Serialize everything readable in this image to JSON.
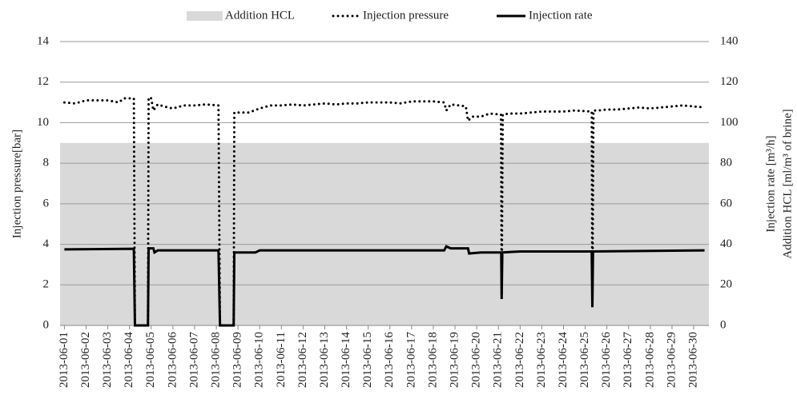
{
  "chart_data": {
    "type": "line",
    "y_label": "Injection pressure[bar]",
    "y2_labels": [
      "Injection rate [m³/h]",
      "Addition HCL [ml/m³ of brine]"
    ],
    "xlim": [
      0.8,
      30.7
    ],
    "xticks": [
      {
        "value": 1,
        "label": "2013-06-01"
      },
      {
        "value": 2,
        "label": "2013-06-02"
      },
      {
        "value": 3,
        "label": "2013-06-03"
      },
      {
        "value": 4,
        "label": "2013-06-04"
      },
      {
        "value": 5,
        "label": "2013-06-05"
      },
      {
        "value": 6,
        "label": "2013-06-06"
      },
      {
        "value": 7,
        "label": "2013-06-07"
      },
      {
        "value": 8,
        "label": "2013-06-08"
      },
      {
        "value": 9,
        "label": "2013-06-09"
      },
      {
        "value": 10,
        "label": "2013-06-10"
      },
      {
        "value": 11,
        "label": "2013-06-11"
      },
      {
        "value": 12,
        "label": "2013-06-12"
      },
      {
        "value": 13,
        "label": "2013-06-13"
      },
      {
        "value": 14,
        "label": "2013-06-14"
      },
      {
        "value": 15,
        "label": "2013-06-15"
      },
      {
        "value": 16,
        "label": "2013-06-16"
      },
      {
        "value": 17,
        "label": "2013-06-17"
      },
      {
        "value": 18,
        "label": "2013-06-18"
      },
      {
        "value": 19,
        "label": "2013-06-19"
      },
      {
        "value": 20,
        "label": "2013-06-20"
      },
      {
        "value": 21,
        "label": "2013-06-21"
      },
      {
        "value": 22,
        "label": "2013-06-22"
      },
      {
        "value": 23,
        "label": "2013-06-23"
      },
      {
        "value": 24,
        "label": "2013-06-24"
      },
      {
        "value": 25,
        "label": "2013-06-25"
      },
      {
        "value": 26,
        "label": "2013-06-26"
      },
      {
        "value": 27,
        "label": "2013-06-27"
      },
      {
        "value": 28,
        "label": "2013-06-28"
      },
      {
        "value": 29,
        "label": "2013-06-29"
      },
      {
        "value": 30,
        "label": "2013-06-30"
      }
    ],
    "ylim": [
      0,
      14
    ],
    "yticks": [
      0,
      2,
      4,
      6,
      8,
      10,
      12,
      14
    ],
    "y2lim": [
      0,
      140
    ],
    "y2ticks": [
      0,
      20,
      40,
      60,
      80,
      100,
      120,
      140
    ],
    "grid": true,
    "legend": "top",
    "series": [
      {
        "name": "Addition HCL",
        "color": "#d9d9d9",
        "style": "area",
        "axis": "y2",
        "x": [
          0.8,
          30.7
        ],
        "values": [
          90,
          90
        ]
      },
      {
        "name": "Injection pressure",
        "color": "#000000",
        "style": "dotted",
        "x": [
          1,
          1.5,
          2,
          2.5,
          3,
          3.5,
          3.75,
          4.2,
          4.25,
          4.85,
          4.88,
          5.0,
          5.1,
          5.3,
          5.6,
          6,
          6.5,
          7,
          7.5,
          8.1,
          8.17,
          8.8,
          8.83,
          9,
          9.5,
          10,
          10.5,
          11,
          11.5,
          12,
          12.5,
          13,
          13.5,
          14,
          14.5,
          15,
          15.5,
          16,
          16.5,
          17,
          17.5,
          18,
          18.5,
          18.6,
          18.8,
          19.2,
          19.5,
          19.6,
          19.8,
          20.2,
          20.6,
          21.12,
          21.15,
          21.2,
          21.5,
          22,
          22.5,
          23,
          23.5,
          24,
          24.5,
          25.3,
          25.33,
          25.38,
          25.6,
          26,
          26.5,
          27,
          27.5,
          28,
          28.5,
          29,
          29.5,
          30,
          30.5
        ],
        "values": [
          11.0,
          10.95,
          11.1,
          11.1,
          11.1,
          11.0,
          11.2,
          11.2,
          0,
          0,
          11.25,
          11.2,
          10.6,
          10.9,
          10.8,
          10.7,
          10.85,
          10.85,
          10.9,
          10.85,
          0,
          0,
          10.5,
          10.5,
          10.5,
          10.7,
          10.85,
          10.85,
          10.9,
          10.85,
          10.9,
          10.95,
          10.9,
          10.95,
          10.95,
          11.0,
          11.0,
          11.0,
          10.95,
          11.05,
          11.05,
          11.05,
          11.0,
          10.6,
          10.9,
          10.85,
          10.8,
          10.1,
          10.3,
          10.3,
          10.45,
          10.4,
          1.5,
          10.4,
          10.45,
          10.45,
          10.5,
          10.55,
          10.55,
          10.55,
          10.6,
          10.55,
          1.0,
          10.6,
          10.6,
          10.65,
          10.65,
          10.7,
          10.75,
          10.7,
          10.75,
          10.8,
          10.85,
          10.8,
          10.75
        ]
      },
      {
        "name": "Injection rate",
        "color": "#000000",
        "style": "solid",
        "axis": "y2",
        "x": [
          1,
          4.2,
          4.25,
          4.85,
          4.88,
          5.1,
          5.15,
          5.3,
          8.1,
          8.17,
          8.8,
          8.83,
          9.8,
          10,
          18.5,
          18.6,
          18.8,
          19.6,
          19.65,
          20.2,
          21.13,
          21.15,
          21.18,
          22,
          25.3,
          25.33,
          25.36,
          30.5
        ],
        "values": [
          37.5,
          37.8,
          0,
          0,
          38,
          38,
          36,
          37,
          37,
          0,
          0,
          36,
          36,
          37,
          37,
          39,
          38,
          38,
          35.5,
          36,
          36,
          13,
          36,
          36.5,
          36.5,
          9,
          36.5,
          37
        ]
      }
    ]
  }
}
